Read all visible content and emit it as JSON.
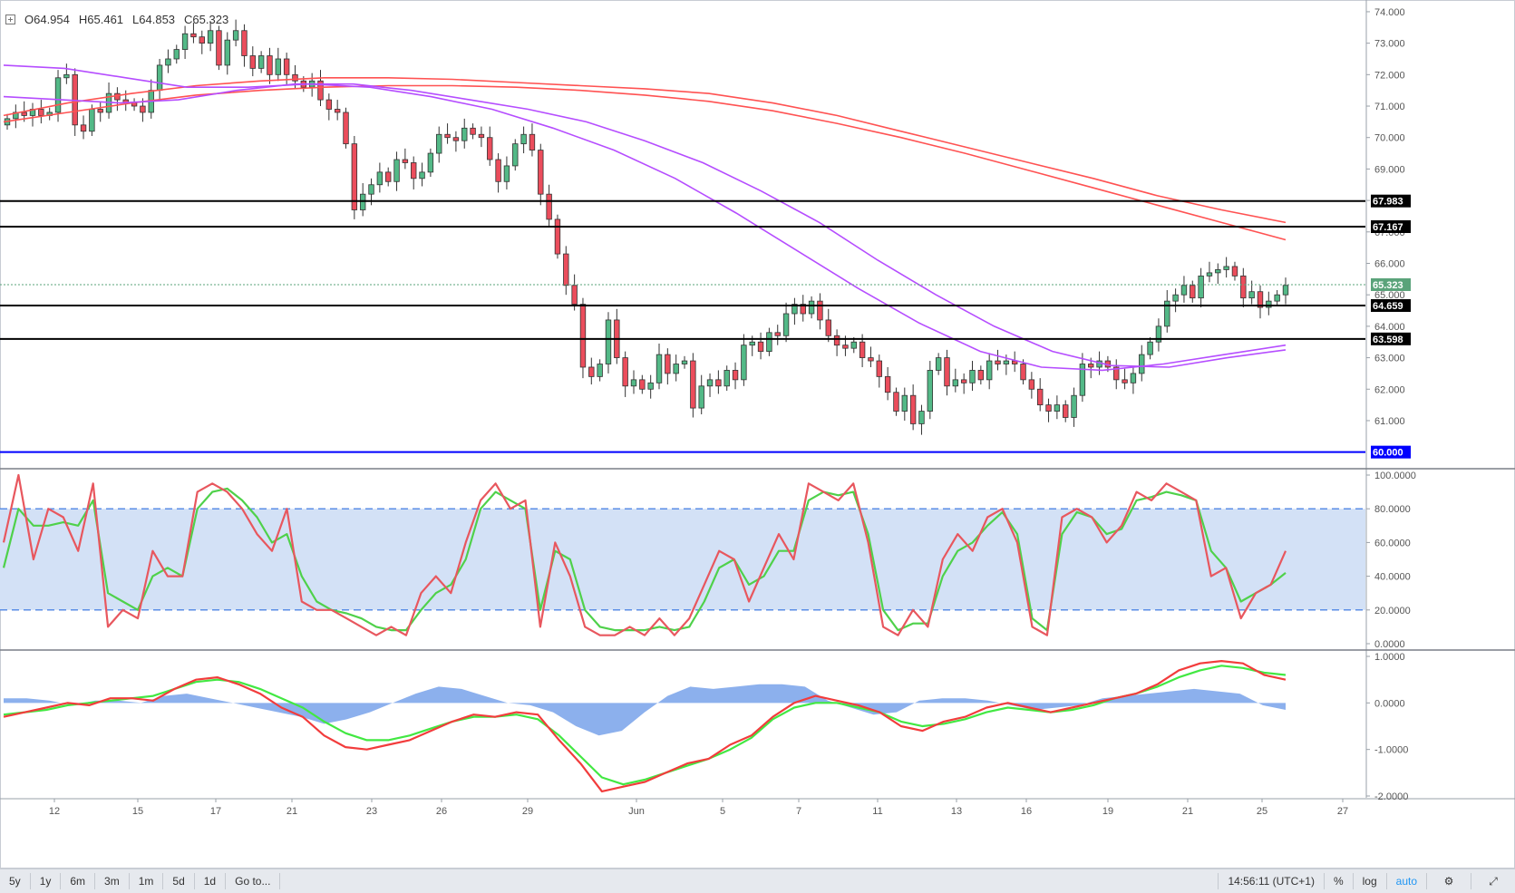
{
  "header": {
    "o": "O64.954",
    "h": "H65.461",
    "l": "L64.853",
    "c": "C65.323"
  },
  "chart_data": {
    "type": "candlestick",
    "price_axis": {
      "ticks": [
        61,
        62,
        63,
        64,
        65,
        66,
        67,
        68,
        69,
        70,
        71,
        72,
        73,
        74
      ],
      "decimals": 3,
      "range": [
        59.5,
        74.2
      ]
    },
    "date_axis_labels": [
      "12",
      "15",
      "17",
      "21",
      "23",
      "26",
      "29",
      "Jun",
      "5",
      "7",
      "11",
      "13",
      "16",
      "19",
      "21",
      "25",
      "27"
    ],
    "candles_close": [
      70.6,
      70.8,
      70.7,
      70.9,
      70.7,
      70.8,
      71.9,
      72.0,
      70.4,
      70.2,
      70.9,
      70.8,
      71.4,
      71.2,
      71.1,
      71.0,
      70.8,
      71.5,
      72.3,
      72.5,
      72.8,
      73.3,
      73.2,
      73.0,
      73.4,
      72.3,
      73.1,
      73.4,
      72.6,
      72.2,
      72.6,
      72.0,
      72.5,
      72.0,
      71.8,
      71.6,
      71.8,
      71.2,
      70.9,
      70.8,
      69.8,
      67.7,
      68.2,
      68.5,
      68.9,
      68.6,
      69.3,
      69.2,
      68.7,
      68.9,
      69.5,
      70.1,
      70.0,
      69.9,
      70.3,
      70.1,
      70.0,
      69.3,
      68.6,
      69.1,
      69.8,
      70.1,
      69.6,
      68.2,
      67.4,
      66.3,
      65.3,
      64.7,
      62.7,
      62.4,
      62.8,
      64.2,
      63.0,
      62.1,
      62.3,
      62.0,
      62.2,
      63.1,
      62.5,
      62.8,
      62.9,
      61.4,
      62.1,
      62.3,
      62.1,
      62.6,
      62.3,
      63.4,
      63.5,
      63.2,
      63.8,
      63.7,
      64.4,
      64.7,
      64.4,
      64.8,
      64.2,
      63.7,
      63.4,
      63.3,
      63.5,
      63.0,
      62.9,
      62.4,
      61.9,
      61.3,
      61.8,
      60.9,
      61.3,
      62.6,
      63.0,
      62.1,
      62.3,
      62.2,
      62.6,
      62.3,
      62.9,
      62.8,
      62.9,
      62.8,
      62.3,
      62.0,
      61.5,
      61.3,
      61.5,
      61.1,
      61.8,
      62.8,
      62.7,
      62.9,
      62.7,
      62.3,
      62.2,
      62.5,
      63.1,
      63.5,
      64.0,
      64.8,
      65.0,
      65.3,
      64.9,
      65.6,
      65.7,
      65.8,
      65.9,
      65.6,
      64.9,
      65.1,
      64.6,
      64.8,
      65.0,
      65.3
    ],
    "horizontal_levels": [
      {
        "value": 67.983,
        "label": "67.983",
        "color": "#000000"
      },
      {
        "value": 67.167,
        "label": "67.167",
        "color": "#000000"
      },
      {
        "value": 64.659,
        "label": "64.659",
        "color": "#000000"
      },
      {
        "value": 63.598,
        "label": "63.598",
        "color": "#000000"
      },
      {
        "value": 60.0,
        "label": "60.000",
        "color": "#0000ff"
      }
    ],
    "last_price": {
      "value": 65.323,
      "label": "65.323",
      "color": "#5aa37a"
    },
    "moving_averages": [
      {
        "color": "#ff5252",
        "values": [
          70.7,
          71.1,
          71.4,
          71.65,
          71.8,
          71.9,
          71.9,
          71.85,
          71.75,
          71.65,
          71.55,
          71.4,
          71.1,
          70.7,
          70.2,
          69.7,
          69.2,
          68.7,
          68.15,
          67.7,
          67.3
        ]
      },
      {
        "color": "#ff5252",
        "values": [
          70.5,
          70.8,
          71.1,
          71.35,
          71.5,
          71.6,
          71.65,
          71.65,
          71.6,
          71.5,
          71.35,
          71.15,
          70.85,
          70.45,
          70.0,
          69.5,
          68.95,
          68.4,
          67.85,
          67.3,
          66.75
        ]
      },
      {
        "color": "#b54dff",
        "values": [
          72.3,
          72.2,
          71.9,
          71.6,
          71.6,
          71.7,
          71.6,
          71.3,
          70.9,
          70.3,
          69.6,
          68.7,
          67.6,
          66.4,
          65.2,
          64.1,
          63.2,
          62.7,
          62.6,
          62.8,
          63.1,
          63.4
        ]
      },
      {
        "color": "#b54dff",
        "values": [
          71.3,
          71.2,
          71.1,
          71.2,
          71.5,
          71.7,
          71.7,
          71.5,
          71.2,
          70.9,
          70.5,
          69.9,
          69.2,
          68.3,
          67.3,
          66.1,
          65.0,
          64.0,
          63.2,
          62.75,
          62.7,
          63.0,
          63.25
        ]
      }
    ],
    "stochastic": {
      "ticks": [
        "0.0000",
        "20.0000",
        "40.0000",
        "60.0000",
        "80.0000",
        "100.0000"
      ],
      "levels": [
        20,
        80
      ],
      "k_color": "#e8575e",
      "d_color": "#4fd14a",
      "k": [
        60,
        100,
        50,
        80,
        75,
        55,
        95,
        10,
        20,
        15,
        55,
        40,
        40,
        90,
        95,
        90,
        80,
        65,
        55,
        80,
        25,
        20,
        20,
        15,
        10,
        5,
        10,
        5,
        30,
        40,
        30,
        60,
        85,
        95,
        80,
        85,
        10,
        60,
        40,
        10,
        5,
        5,
        10,
        5,
        15,
        5,
        15,
        35,
        55,
        50,
        25,
        45,
        65,
        50,
        95,
        90,
        85,
        95,
        60,
        10,
        5,
        20,
        10,
        50,
        65,
        55,
        75,
        80,
        60,
        10,
        5,
        75,
        80,
        75,
        60,
        70,
        90,
        85,
        95,
        90,
        85,
        40,
        45,
        15,
        30,
        35,
        55
      ],
      "d": [
        45,
        80,
        70,
        70,
        72,
        70,
        85,
        30,
        25,
        20,
        40,
        45,
        40,
        80,
        90,
        92,
        85,
        75,
        60,
        65,
        40,
        25,
        20,
        18,
        15,
        10,
        8,
        8,
        20,
        30,
        35,
        50,
        80,
        90,
        85,
        80,
        20,
        55,
        50,
        20,
        10,
        8,
        8,
        8,
        10,
        8,
        10,
        25,
        45,
        50,
        35,
        40,
        55,
        55,
        85,
        90,
        88,
        90,
        65,
        20,
        8,
        12,
        12,
        40,
        55,
        60,
        70,
        78,
        65,
        15,
        8,
        65,
        78,
        75,
        65,
        68,
        85,
        87,
        90,
        88,
        85,
        55,
        45,
        25,
        30,
        35,
        42
      ]
    },
    "macd": {
      "ticks": [
        "-2.0000",
        "-1.0000",
        "0.0000",
        "1.0000"
      ],
      "macd_color": "#f23c3c",
      "signal_color": "#42e842",
      "hist_color": "#6f9ce8",
      "macd": [
        -0.3,
        -0.2,
        -0.1,
        0.0,
        -0.05,
        0.1,
        0.1,
        0.05,
        0.3,
        0.5,
        0.55,
        0.4,
        0.2,
        -0.1,
        -0.3,
        -0.7,
        -0.95,
        -1.0,
        -0.9,
        -0.8,
        -0.6,
        -0.4,
        -0.25,
        -0.3,
        -0.2,
        -0.25,
        -0.8,
        -1.3,
        -1.9,
        -1.8,
        -1.7,
        -1.5,
        -1.3,
        -1.2,
        -0.9,
        -0.7,
        -0.3,
        0.0,
        0.15,
        0.05,
        -0.05,
        -0.2,
        -0.5,
        -0.6,
        -0.4,
        -0.3,
        -0.1,
        0.0,
        -0.1,
        -0.2,
        -0.1,
        0.0,
        0.1,
        0.2,
        0.4,
        0.7,
        0.85,
        0.9,
        0.85,
        0.6,
        0.5
      ],
      "signal": [
        -0.25,
        -0.2,
        -0.15,
        -0.05,
        0.0,
        0.05,
        0.1,
        0.15,
        0.3,
        0.45,
        0.5,
        0.45,
        0.3,
        0.1,
        -0.1,
        -0.4,
        -0.65,
        -0.8,
        -0.8,
        -0.7,
        -0.55,
        -0.4,
        -0.3,
        -0.3,
        -0.25,
        -0.35,
        -0.7,
        -1.15,
        -1.6,
        -1.75,
        -1.65,
        -1.5,
        -1.35,
        -1.2,
        -1.0,
        -0.75,
        -0.35,
        -0.1,
        0.0,
        0.0,
        -0.1,
        -0.2,
        -0.4,
        -0.5,
        -0.45,
        -0.35,
        -0.2,
        -0.1,
        -0.15,
        -0.2,
        -0.15,
        -0.05,
        0.1,
        0.2,
        0.35,
        0.55,
        0.7,
        0.8,
        0.75,
        0.65,
        0.6
      ],
      "hist": [
        0.1,
        0.1,
        0.05,
        -0.05,
        0.05,
        0.05,
        0.0,
        0.15,
        0.2,
        0.1,
        0.0,
        -0.1,
        -0.2,
        -0.3,
        -0.45,
        -0.35,
        -0.2,
        0.0,
        0.2,
        0.35,
        0.3,
        0.15,
        0.0,
        -0.05,
        -0.2,
        -0.5,
        -0.7,
        -0.6,
        -0.2,
        0.15,
        0.35,
        0.3,
        0.35,
        0.4,
        0.4,
        0.35,
        0.05,
        -0.1,
        -0.25,
        -0.2,
        0.05,
        0.1,
        0.1,
        0.05,
        -0.05,
        -0.15,
        -0.1,
        -0.05,
        0.1,
        0.15,
        0.2,
        0.25,
        0.3,
        0.25,
        0.2,
        -0.05,
        -0.15
      ]
    }
  },
  "toolbar": {
    "ranges": [
      "5y",
      "1y",
      "6m",
      "3m",
      "1m",
      "5d",
      "1d"
    ],
    "goto": "Go to...",
    "time": "14:56:11 (UTC+1)",
    "percent": "%",
    "log": "log",
    "auto": "auto"
  }
}
